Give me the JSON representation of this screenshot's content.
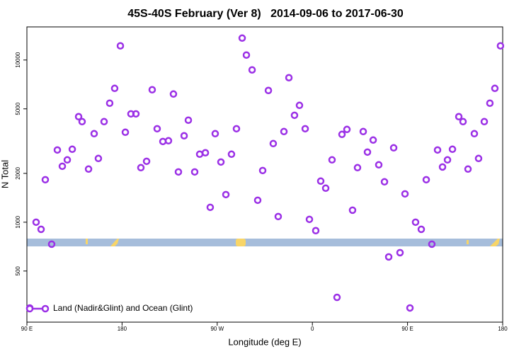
{
  "chart_data": {
    "type": "scatter",
    "title": "45S-40S February (Ver 8)   2014-09-06 to 2017-06-30",
    "x_label": "Longitude (deg E)",
    "y_label": "N Total",
    "log_y": true,
    "legend": "lower left",
    "xlim": [
      90,
      540
    ],
    "ylim": [
      242,
      16000
    ],
    "xticks": [
      {
        "value": 90,
        "label": "90 E"
      },
      {
        "value": 180,
        "label": "180"
      },
      {
        "value": 270,
        "label": "90 W"
      },
      {
        "value": 360,
        "label": "0"
      },
      {
        "value": 450,
        "label": "90 E"
      },
      {
        "value": 540,
        "label": "180"
      }
    ],
    "yticks": [
      500,
      1000,
      2000,
      5000,
      10000
    ],
    "series": [
      {
        "name": "Land (Nadir&Glint) and Ocean (Glint)",
        "color": "#9b30e6",
        "x": [
          92.7,
          98.7,
          103.4,
          107.4,
          113.4,
          118.8,
          123.5,
          128.2,
          132.9,
          138.9,
          142.2,
          148.3,
          153.6,
          157.6,
          163.0,
          168.3,
          173.0,
          178.4,
          183.1,
          188.4,
          193.1,
          197.8,
          203.2,
          208.5,
          213.2,
          218.6,
          223.9,
          228.6,
          233.3,
          238.7,
          242.7,
          248.7,
          253.4,
          258.8,
          263.4,
          268.1,
          273.5,
          278.2,
          283.5,
          288.2,
          293.6,
          297.6,
          303.0,
          308.3,
          313.0,
          318.4,
          323.0,
          327.7,
          333.1,
          337.8,
          343.1,
          347.8,
          353.2,
          357.2,
          363.2,
          367.9,
          372.6,
          378.6,
          383.3,
          388.0,
          392.7,
          398.0,
          402.7,
          408.1,
          412.1,
          417.5,
          422.8,
          428.2,
          432.2,
          436.9,
          442.9,
          447.6,
          452.3,
          457.6,
          463.0,
          467.7,
          473.0,
          478.4,
          483.1,
          487.8,
          492.5,
          498.5,
          502.5,
          507.2,
          513.2,
          517.2,
          522.6,
          527.9,
          532.6,
          537.9
        ],
        "values": [
          296,
          1000,
          904,
          1828,
          732,
          2788,
          2213,
          2423,
          2817,
          4475,
          4170,
          2126,
          3515,
          2472,
          4170,
          5417,
          6687,
          12230,
          3586,
          4656,
          4656,
          2169,
          2374,
          6556,
          3770,
          3146,
          3179,
          6170,
          2042,
          3411,
          4256,
          2042,
          2626,
          2680,
          1235,
          3515,
          2350,
          1480,
          2626,
          3770,
          13650,
          10730,
          8690,
          1366,
          2083,
          6490,
          3053,
          1084,
          3622,
          7780,
          4563,
          5254,
          3770,
          1041,
          887,
          1792,
          1621,
          2423,
          344,
          3479,
          3733,
          1186,
          2169,
          3622,
          2705,
          3211,
          2258,
          1774,
          611,
          2874,
          649,
          1495,
          296,
          1000,
          904,
          1828,
          732,
          2788,
          2190,
          2423,
          2817,
          4475,
          4170,
          2126,
          3515,
          2472,
          4170,
          5417,
          6687,
          12230
        ]
      }
    ]
  }
}
